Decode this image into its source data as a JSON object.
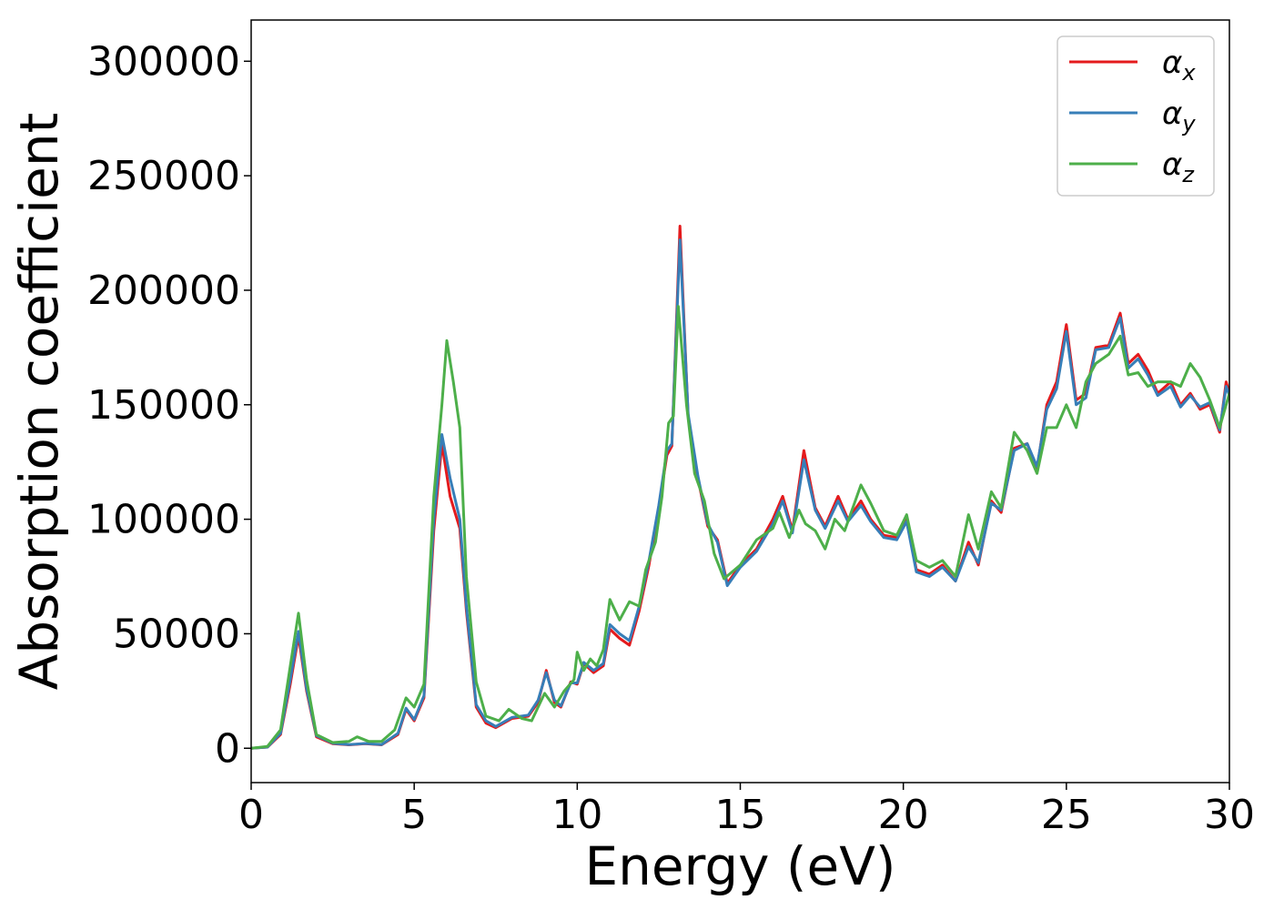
{
  "chart_data": {
    "type": "line",
    "title": "",
    "xlabel": "Energy (eV)",
    "ylabel": "Absorption coefficient",
    "xlim": [
      0,
      30
    ],
    "ylim": [
      -15000,
      318000
    ],
    "xticks": [
      0,
      5,
      10,
      15,
      20,
      25,
      30
    ],
    "yticks": [
      0,
      50000,
      100000,
      150000,
      200000,
      250000,
      300000
    ],
    "xtick_labels": [
      "0",
      "5",
      "10",
      "15",
      "20",
      "25",
      "30"
    ],
    "ytick_labels": [
      "0",
      "50000",
      "100000",
      "150000",
      "200000",
      "250000",
      "300000"
    ],
    "grid": false,
    "legend_position": "top-right",
    "series": [
      {
        "name": "αx",
        "legend_base": "α",
        "legend_sub": "x",
        "color": "#e41a1c",
        "points": [
          [
            0,
            0
          ],
          [
            0.5,
            500
          ],
          [
            0.9,
            6000
          ],
          [
            1.2,
            28000
          ],
          [
            1.45,
            49000
          ],
          [
            1.7,
            25000
          ],
          [
            2.0,
            5000
          ],
          [
            2.5,
            2000
          ],
          [
            3.0,
            1500
          ],
          [
            3.5,
            2000
          ],
          [
            4.0,
            1500
          ],
          [
            4.5,
            6000
          ],
          [
            4.75,
            17000
          ],
          [
            5.0,
            12000
          ],
          [
            5.3,
            22000
          ],
          [
            5.6,
            95000
          ],
          [
            5.85,
            133000
          ],
          [
            6.1,
            110000
          ],
          [
            6.4,
            96000
          ],
          [
            6.6,
            60000
          ],
          [
            6.9,
            18000
          ],
          [
            7.2,
            11000
          ],
          [
            7.5,
            9000
          ],
          [
            8.0,
            13000
          ],
          [
            8.5,
            14000
          ],
          [
            8.8,
            20000
          ],
          [
            9.05,
            34000
          ],
          [
            9.3,
            20000
          ],
          [
            9.5,
            18000
          ],
          [
            9.8,
            29000
          ],
          [
            10.0,
            28000
          ],
          [
            10.2,
            37000
          ],
          [
            10.5,
            33000
          ],
          [
            10.8,
            36000
          ],
          [
            11.0,
            52000
          ],
          [
            11.3,
            48000
          ],
          [
            11.6,
            45000
          ],
          [
            11.9,
            60000
          ],
          [
            12.2,
            80000
          ],
          [
            12.5,
            105000
          ],
          [
            12.75,
            128000
          ],
          [
            12.9,
            132000
          ],
          [
            13.15,
            228000
          ],
          [
            13.4,
            145000
          ],
          [
            13.7,
            118000
          ],
          [
            14.0,
            97000
          ],
          [
            14.3,
            91000
          ],
          [
            14.6,
            72000
          ],
          [
            15.0,
            80000
          ],
          [
            15.5,
            87000
          ],
          [
            16.0,
            100000
          ],
          [
            16.3,
            110000
          ],
          [
            16.6,
            95000
          ],
          [
            16.95,
            130000
          ],
          [
            17.3,
            105000
          ],
          [
            17.6,
            97000
          ],
          [
            18.0,
            110000
          ],
          [
            18.3,
            100000
          ],
          [
            18.7,
            108000
          ],
          [
            19.0,
            100000
          ],
          [
            19.4,
            93000
          ],
          [
            19.8,
            92000
          ],
          [
            20.1,
            100000
          ],
          [
            20.4,
            78000
          ],
          [
            20.8,
            76000
          ],
          [
            21.2,
            80000
          ],
          [
            21.6,
            73000
          ],
          [
            22.0,
            90000
          ],
          [
            22.3,
            80000
          ],
          [
            22.7,
            108000
          ],
          [
            23.0,
            103000
          ],
          [
            23.4,
            131000
          ],
          [
            23.8,
            133000
          ],
          [
            24.1,
            122000
          ],
          [
            24.4,
            150000
          ],
          [
            24.7,
            160000
          ],
          [
            25.0,
            185000
          ],
          [
            25.3,
            152000
          ],
          [
            25.6,
            155000
          ],
          [
            25.9,
            175000
          ],
          [
            26.3,
            176000
          ],
          [
            26.65,
            190000
          ],
          [
            26.9,
            168000
          ],
          [
            27.2,
            172000
          ],
          [
            27.5,
            165000
          ],
          [
            27.8,
            155000
          ],
          [
            28.2,
            160000
          ],
          [
            28.5,
            150000
          ],
          [
            28.8,
            155000
          ],
          [
            29.1,
            148000
          ],
          [
            29.4,
            150000
          ],
          [
            29.7,
            138000
          ],
          [
            29.9,
            160000
          ],
          [
            30.0,
            155000
          ]
        ]
      },
      {
        "name": "αy",
        "legend_base": "α",
        "legend_sub": "y",
        "color": "#377eb8",
        "points": [
          [
            0,
            0
          ],
          [
            0.5,
            500
          ],
          [
            0.9,
            6500
          ],
          [
            1.2,
            30000
          ],
          [
            1.45,
            51000
          ],
          [
            1.7,
            26000
          ],
          [
            2.0,
            5500
          ],
          [
            2.5,
            2200
          ],
          [
            3.0,
            1600
          ],
          [
            3.5,
            2100
          ],
          [
            4.0,
            1600
          ],
          [
            4.5,
            6500
          ],
          [
            4.75,
            17500
          ],
          [
            5.0,
            12500
          ],
          [
            5.3,
            23000
          ],
          [
            5.6,
            100000
          ],
          [
            5.85,
            137000
          ],
          [
            6.1,
            118000
          ],
          [
            6.4,
            100000
          ],
          [
            6.6,
            62000
          ],
          [
            6.9,
            19000
          ],
          [
            7.2,
            12000
          ],
          [
            7.5,
            9500
          ],
          [
            8.0,
            13500
          ],
          [
            8.5,
            14500
          ],
          [
            8.8,
            21000
          ],
          [
            9.05,
            33000
          ],
          [
            9.3,
            21000
          ],
          [
            9.5,
            18500
          ],
          [
            9.8,
            28500
          ],
          [
            10.0,
            28500
          ],
          [
            10.2,
            37500
          ],
          [
            10.5,
            34000
          ],
          [
            10.8,
            37000
          ],
          [
            11.0,
            54000
          ],
          [
            11.3,
            50000
          ],
          [
            11.6,
            47000
          ],
          [
            11.9,
            62000
          ],
          [
            12.2,
            82000
          ],
          [
            12.5,
            106000
          ],
          [
            12.75,
            130000
          ],
          [
            12.9,
            133000
          ],
          [
            13.15,
            222000
          ],
          [
            13.4,
            146000
          ],
          [
            13.7,
            119000
          ],
          [
            14.0,
            98000
          ],
          [
            14.3,
            90000
          ],
          [
            14.6,
            71000
          ],
          [
            15.0,
            79000
          ],
          [
            15.5,
            86000
          ],
          [
            16.0,
            98000
          ],
          [
            16.3,
            108000
          ],
          [
            16.6,
            94000
          ],
          [
            16.95,
            126000
          ],
          [
            17.3,
            104000
          ],
          [
            17.6,
            96000
          ],
          [
            18.0,
            108000
          ],
          [
            18.3,
            99000
          ],
          [
            18.7,
            106000
          ],
          [
            19.0,
            99000
          ],
          [
            19.4,
            92000
          ],
          [
            19.8,
            91000
          ],
          [
            20.1,
            99000
          ],
          [
            20.4,
            77000
          ],
          [
            20.8,
            75000
          ],
          [
            21.2,
            79000
          ],
          [
            21.6,
            73000
          ],
          [
            22.0,
            88000
          ],
          [
            22.3,
            81000
          ],
          [
            22.7,
            107000
          ],
          [
            23.0,
            104000
          ],
          [
            23.4,
            130000
          ],
          [
            23.8,
            133000
          ],
          [
            24.1,
            123000
          ],
          [
            24.4,
            148000
          ],
          [
            24.7,
            157000
          ],
          [
            25.0,
            182000
          ],
          [
            25.3,
            150000
          ],
          [
            25.6,
            153000
          ],
          [
            25.9,
            174000
          ],
          [
            26.3,
            175000
          ],
          [
            26.65,
            188000
          ],
          [
            26.9,
            166000
          ],
          [
            27.2,
            170000
          ],
          [
            27.5,
            163000
          ],
          [
            27.8,
            154000
          ],
          [
            28.2,
            158000
          ],
          [
            28.5,
            149000
          ],
          [
            28.8,
            154000
          ],
          [
            29.1,
            149000
          ],
          [
            29.4,
            151000
          ],
          [
            29.7,
            139000
          ],
          [
            29.9,
            158000
          ],
          [
            30.0,
            154000
          ]
        ]
      },
      {
        "name": "αz",
        "legend_base": "α",
        "legend_sub": "z",
        "color": "#4daf4a",
        "points": [
          [
            0,
            0
          ],
          [
            0.5,
            800
          ],
          [
            0.9,
            8000
          ],
          [
            1.2,
            36000
          ],
          [
            1.45,
            59000
          ],
          [
            1.7,
            30000
          ],
          [
            2.0,
            6000
          ],
          [
            2.5,
            2500
          ],
          [
            3.0,
            3000
          ],
          [
            3.25,
            5000
          ],
          [
            3.6,
            3000
          ],
          [
            4.0,
            3000
          ],
          [
            4.4,
            8000
          ],
          [
            4.75,
            22000
          ],
          [
            5.0,
            18000
          ],
          [
            5.3,
            28000
          ],
          [
            5.6,
            110000
          ],
          [
            5.85,
            150000
          ],
          [
            6.0,
            178000
          ],
          [
            6.2,
            160000
          ],
          [
            6.4,
            140000
          ],
          [
            6.6,
            75000
          ],
          [
            6.9,
            29000
          ],
          [
            7.2,
            14000
          ],
          [
            7.6,
            12000
          ],
          [
            7.9,
            17000
          ],
          [
            8.3,
            13000
          ],
          [
            8.6,
            12000
          ],
          [
            9.0,
            24000
          ],
          [
            9.3,
            18000
          ],
          [
            9.6,
            25000
          ],
          [
            9.9,
            30000
          ],
          [
            10.0,
            42000
          ],
          [
            10.2,
            34000
          ],
          [
            10.4,
            39000
          ],
          [
            10.6,
            36000
          ],
          [
            10.8,
            43000
          ],
          [
            11.0,
            65000
          ],
          [
            11.3,
            56000
          ],
          [
            11.6,
            64000
          ],
          [
            11.9,
            62000
          ],
          [
            12.1,
            78000
          ],
          [
            12.4,
            90000
          ],
          [
            12.6,
            110000
          ],
          [
            12.8,
            142000
          ],
          [
            12.95,
            145000
          ],
          [
            13.1,
            193000
          ],
          [
            13.35,
            150000
          ],
          [
            13.6,
            120000
          ],
          [
            13.9,
            108000
          ],
          [
            14.2,
            85000
          ],
          [
            14.5,
            74000
          ],
          [
            15.0,
            80000
          ],
          [
            15.5,
            91000
          ],
          [
            16.0,
            96000
          ],
          [
            16.2,
            103000
          ],
          [
            16.5,
            92000
          ],
          [
            16.8,
            104000
          ],
          [
            17.0,
            98000
          ],
          [
            17.3,
            95000
          ],
          [
            17.6,
            87000
          ],
          [
            17.9,
            100000
          ],
          [
            18.2,
            95000
          ],
          [
            18.7,
            115000
          ],
          [
            19.0,
            107000
          ],
          [
            19.4,
            95000
          ],
          [
            19.8,
            93000
          ],
          [
            20.1,
            102000
          ],
          [
            20.4,
            82000
          ],
          [
            20.8,
            79000
          ],
          [
            21.2,
            82000
          ],
          [
            21.6,
            75000
          ],
          [
            22.0,
            102000
          ],
          [
            22.3,
            87000
          ],
          [
            22.7,
            112000
          ],
          [
            23.0,
            105000
          ],
          [
            23.4,
            138000
          ],
          [
            23.8,
            130000
          ],
          [
            24.1,
            120000
          ],
          [
            24.4,
            140000
          ],
          [
            24.7,
            140000
          ],
          [
            25.0,
            150000
          ],
          [
            25.3,
            140000
          ],
          [
            25.6,
            160000
          ],
          [
            25.9,
            168000
          ],
          [
            26.3,
            172000
          ],
          [
            26.65,
            180000
          ],
          [
            26.9,
            163000
          ],
          [
            27.2,
            164000
          ],
          [
            27.5,
            158000
          ],
          [
            27.8,
            160000
          ],
          [
            28.2,
            160000
          ],
          [
            28.5,
            158000
          ],
          [
            28.8,
            168000
          ],
          [
            29.1,
            162000
          ],
          [
            29.4,
            152000
          ],
          [
            29.7,
            140000
          ],
          [
            29.9,
            150000
          ],
          [
            30.0,
            155000
          ]
        ]
      }
    ]
  }
}
